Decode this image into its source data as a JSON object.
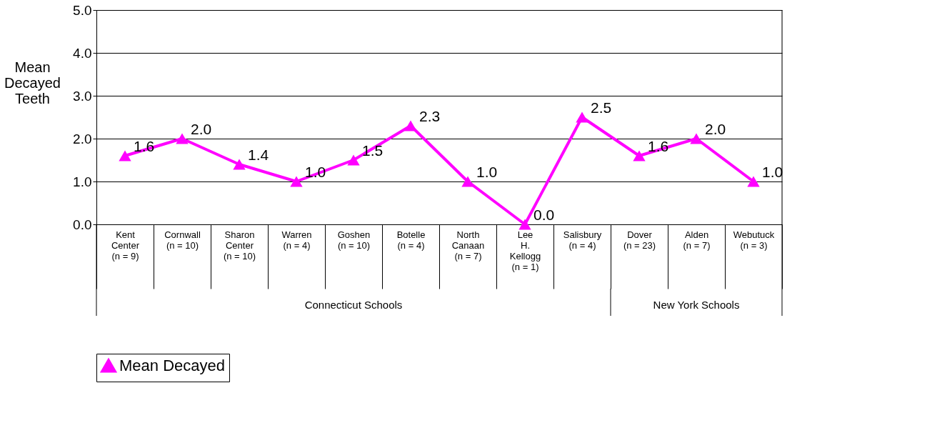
{
  "chart_data": {
    "type": "line",
    "ylabel": "Mean Decayed Teeth",
    "categories": [
      "Kent Center (n = 9)",
      "Cornwall (n = 10)",
      "Sharon Center (n = 10)",
      "Warren (n = 4)",
      "Goshen (n = 10)",
      "Botelle (n = 4)",
      "North Canaan (n = 7)",
      "Lee H. Kellogg (n = 1)",
      "Salisbury (n = 4)",
      "Dover (n = 23)",
      "Alden (n = 7)",
      "Webutuck (n = 3)"
    ],
    "series": [
      {
        "name": "Mean Decayed",
        "color": "#ff00ff",
        "values": [
          1.6,
          2.0,
          1.4,
          1.0,
          1.5,
          2.3,
          1.0,
          0.0,
          2.5,
          1.6,
          2.0,
          1.0
        ]
      }
    ],
    "ylim": [
      0,
      5
    ],
    "yticks": [
      {
        "value": 0,
        "label": "0.0"
      },
      {
        "value": 1,
        "label": "1.0"
      },
      {
        "value": 2,
        "label": "2.0"
      },
      {
        "value": 3,
        "label": "3.0"
      },
      {
        "value": 4,
        "label": "4.0"
      },
      {
        "value": 5,
        "label": "5.0"
      }
    ],
    "annotations": [
      "Connecticut Schools",
      "New York Schools"
    ],
    "value_labels": [
      "1.6",
      "2.0",
      "1.4",
      "1.0",
      "1.5",
      "2.3",
      "1.0",
      "0.0",
      "2.5",
      "1.6",
      "2.0",
      "1.0"
    ],
    "grid": "y",
    "legend": "bottom",
    "marker": "triangle",
    "line_style": "solid"
  }
}
